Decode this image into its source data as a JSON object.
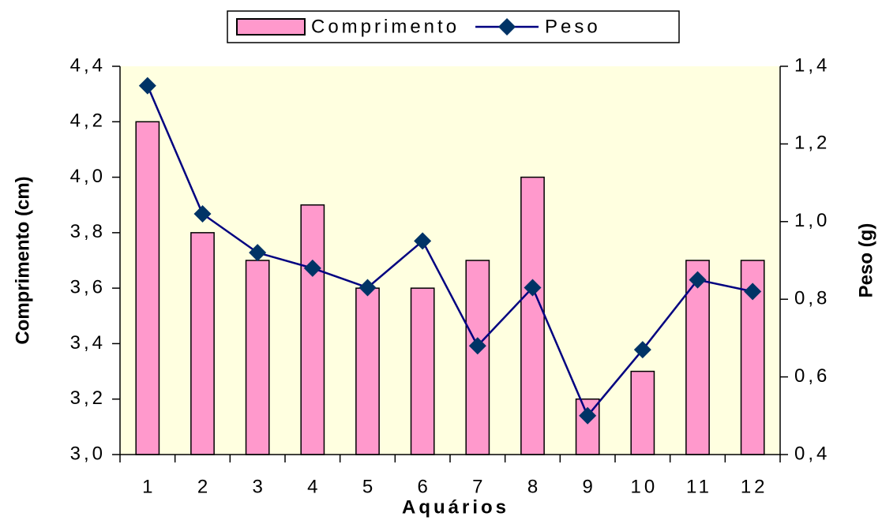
{
  "chart_data": {
    "type": "bar_line",
    "categories": [
      "1",
      "2",
      "3",
      "4",
      "5",
      "6",
      "7",
      "8",
      "9",
      "10",
      "11",
      "12"
    ],
    "series": [
      {
        "name": "Comprimento",
        "type": "bar",
        "color": "#ff99cc",
        "values": [
          4.2,
          3.8,
          3.7,
          3.9,
          3.6,
          3.6,
          3.7,
          4.0,
          3.2,
          3.3,
          3.7,
          3.7
        ]
      },
      {
        "name": "Peso",
        "type": "line",
        "axis": "y2",
        "color": "#000080",
        "marker_color": "#003366",
        "values": [
          1.35,
          1.02,
          0.92,
          0.88,
          0.83,
          0.95,
          0.68,
          0.83,
          0.5,
          0.67,
          0.85,
          0.82
        ]
      }
    ],
    "xlabel": "Aquários",
    "ylabel": "Comprimento (cm)",
    "y2label": "Peso (g)",
    "ylim": [
      3.0,
      4.4
    ],
    "yticks": [
      {
        "value": 3.0,
        "label": "3,0"
      },
      {
        "value": 3.2,
        "label": "3,2"
      },
      {
        "value": 3.4,
        "label": "3,4"
      },
      {
        "value": 3.6,
        "label": "3,6"
      },
      {
        "value": 3.8,
        "label": "3,8"
      },
      {
        "value": 4.0,
        "label": "4,0"
      },
      {
        "value": 4.2,
        "label": "4,2"
      },
      {
        "value": 4.4,
        "label": "4,4"
      }
    ],
    "y2lim": [
      0.4,
      1.4
    ],
    "y2ticks": [
      {
        "value": 0.4,
        "label": "0,4"
      },
      {
        "value": 0.6,
        "label": "0,6"
      },
      {
        "value": 0.8,
        "label": "0,8"
      },
      {
        "value": 1.0,
        "label": "1,0"
      },
      {
        "value": 1.2,
        "label": "1,2"
      },
      {
        "value": 1.4,
        "label": "1,4"
      }
    ],
    "legend": "top",
    "plot_background": "#ffffe0"
  }
}
